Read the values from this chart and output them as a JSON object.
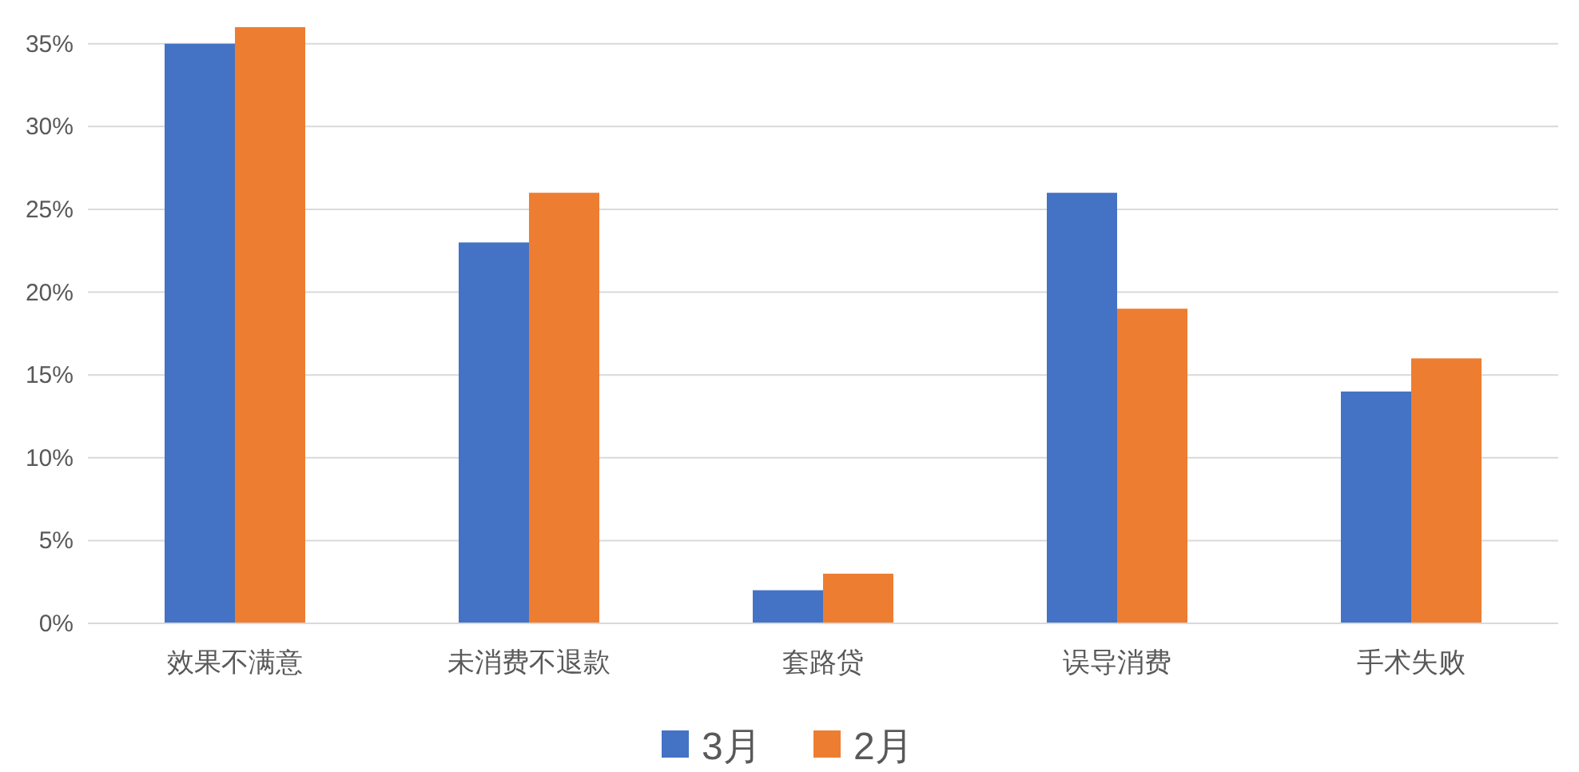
{
  "chart_data": {
    "type": "bar",
    "categories": [
      "效果不满意",
      "未消费不退款",
      "套路贷",
      "误导消费",
      "手术失败"
    ],
    "series": [
      {
        "name": "3月",
        "color": "#4472c4",
        "values": [
          35,
          23,
          2,
          26,
          14
        ]
      },
      {
        "name": "2月",
        "color": "#ed7d31",
        "values": [
          36,
          26,
          3,
          19,
          16
        ]
      }
    ],
    "ylim": [
      0,
      36
    ],
    "yticks": [
      {
        "value": 0,
        "label": "0%"
      },
      {
        "value": 5,
        "label": "5%"
      },
      {
        "value": 10,
        "label": "10%"
      },
      {
        "value": 15,
        "label": "15%"
      },
      {
        "value": 20,
        "label": "20%"
      },
      {
        "value": 25,
        "label": "25%"
      },
      {
        "value": 30,
        "label": "30%"
      },
      {
        "value": 35,
        "label": "35%"
      }
    ],
    "grid": "y",
    "legend": "bottom"
  }
}
